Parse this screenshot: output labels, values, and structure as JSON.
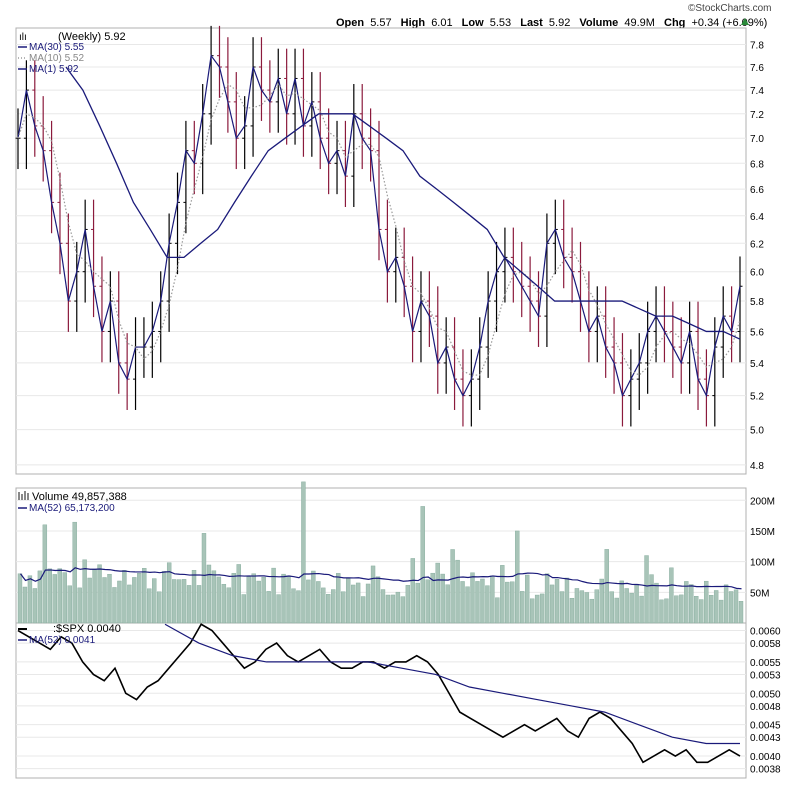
{
  "watermark": "©StockCharts.com",
  "header": {
    "open_label": "Open",
    "open": "5.57",
    "high_label": "High",
    "high": "6.01",
    "low_label": "Low",
    "low": "5.53",
    "last_label": "Last",
    "last": "5.92",
    "volume_label": "Volume",
    "volume": "49.9M",
    "chg_label": "Chg",
    "chg": "+0.34 (+6.09%)"
  },
  "colors": {
    "up": "#000000",
    "down": "#8b1a3c",
    "ma_dark": "#1a1a7a",
    "ma_light": "#aaaaaa",
    "volume_bar": "#a8c4b8",
    "grid": "#e8e8e8",
    "panel_border": "#b0b0b0"
  },
  "chart_data": [
    {
      "type": "line",
      "panel": "price",
      "title": "(Weekly) 5.92",
      "legend": [
        {
          "name": "MA(30)",
          "value": "5.55",
          "style": "solid"
        },
        {
          "name": "MA(10)",
          "value": "5.52",
          "style": "dotted"
        },
        {
          "name": "MA(1)",
          "value": "5.92",
          "style": "solid"
        }
      ],
      "yticks": [
        "7.8",
        "7.6",
        "7.4",
        "7.2",
        "7.0",
        "6.8",
        "6.6",
        "6.4",
        "6.2",
        "6.0",
        "5.8",
        "5.6",
        "5.4",
        "5.2",
        "5.0",
        "4.8"
      ],
      "ylim": [
        4.8,
        7.8
      ],
      "log_scale": true,
      "series": [
        {
          "name": "MA(1)",
          "values": [
            7.0,
            7.4,
            7.1,
            6.9,
            6.5,
            6.2,
            5.8,
            6.0,
            6.3,
            5.9,
            5.6,
            5.8,
            5.4,
            5.3,
            5.5,
            5.5,
            5.6,
            5.8,
            6.2,
            6.5,
            6.9,
            6.8,
            7.2,
            7.7,
            7.6,
            7.3,
            7.0,
            7.1,
            7.6,
            7.4,
            7.3,
            7.5,
            7.2,
            7.5,
            7.1,
            7.3,
            7.0,
            6.8,
            6.9,
            6.7,
            7.2,
            7.0,
            6.9,
            6.3,
            6.0,
            6.1,
            5.9,
            5.6,
            5.8,
            5.7,
            5.4,
            5.5,
            5.3,
            5.2,
            5.3,
            5.5,
            5.8,
            6.0,
            6.1,
            6.0,
            5.9,
            5.8,
            5.7,
            6.2,
            6.3,
            6.1,
            6.0,
            5.8,
            5.6,
            5.7,
            5.5,
            5.4,
            5.2,
            5.3,
            5.4,
            5.6,
            5.7,
            5.6,
            5.5,
            5.4,
            5.6,
            5.3,
            5.2,
            5.5,
            5.7,
            5.6,
            5.9
          ],
          "_note": "approximate weekly closes"
        },
        {
          "name": "MA(30)",
          "values": [
            7.6,
            7.4,
            7.1,
            6.8,
            6.5,
            6.3,
            6.1,
            6.1,
            6.2,
            6.3,
            6.5,
            6.7,
            6.9,
            7.0,
            7.1,
            7.2,
            7.2,
            7.2,
            7.1,
            7.0,
            6.9,
            6.7,
            6.6,
            6.5,
            6.4,
            6.3,
            6.1,
            6.0,
            5.9,
            5.8,
            5.8,
            5.8,
            5.8,
            5.8,
            5.75,
            5.7,
            5.7,
            5.65,
            5.6,
            5.6,
            5.55
          ]
        }
      ]
    },
    {
      "type": "bar",
      "panel": "volume",
      "title": "Volume 49,857,388",
      "legend": [
        {
          "name": "MA(52)",
          "value": "65,173,200"
        }
      ],
      "yticks": [
        "200M",
        "150M",
        "100M",
        "50M"
      ],
      "ylim": [
        0,
        220000000
      ]
    },
    {
      "type": "line",
      "panel": "ratio",
      "title": ":$SPX 0.0040",
      "legend": [
        {
          "name": "MA(52)",
          "value": "0.0041"
        }
      ],
      "yticks": [
        "0.0060",
        "0.0058",
        "0.0055",
        "0.0053",
        "0.0050",
        "0.0048",
        "0.0045",
        "0.0043",
        "0.0040",
        "0.0038"
      ],
      "ylim": [
        0.0037,
        0.0061
      ]
    }
  ]
}
